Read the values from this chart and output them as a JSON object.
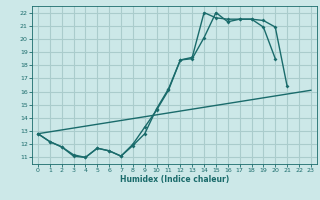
{
  "xlabel": "Humidex (Indice chaleur)",
  "background_color": "#cce8e8",
  "grid_color": "#aacccc",
  "line_color": "#1a6b6b",
  "xlim": [
    -0.5,
    23.5
  ],
  "ylim": [
    10.5,
    22.5
  ],
  "xticks": [
    0,
    1,
    2,
    3,
    4,
    5,
    6,
    7,
    8,
    9,
    10,
    11,
    12,
    13,
    14,
    15,
    16,
    17,
    18,
    19,
    20,
    21,
    22,
    23
  ],
  "yticks": [
    11,
    12,
    13,
    14,
    15,
    16,
    17,
    18,
    19,
    20,
    21,
    22
  ],
  "line1_x": [
    0,
    1,
    2,
    3,
    4,
    5,
    6,
    7,
    8,
    9,
    10,
    11,
    12,
    13,
    14,
    15,
    16,
    17,
    18,
    19,
    20
  ],
  "line1_y": [
    12.8,
    12.2,
    11.8,
    11.1,
    11.0,
    11.7,
    11.5,
    11.1,
    12.0,
    13.3,
    14.6,
    16.1,
    18.4,
    18.5,
    20.1,
    22.0,
    21.3,
    21.5,
    21.5,
    20.9,
    18.5
  ],
  "line2_x": [
    0,
    1,
    2,
    3,
    4,
    5,
    6,
    7,
    8,
    9,
    10,
    11,
    12,
    13,
    14,
    15,
    16,
    17,
    18,
    19,
    20,
    21
  ],
  "line2_y": [
    12.8,
    12.2,
    11.8,
    11.2,
    11.0,
    11.7,
    11.5,
    11.1,
    11.9,
    12.8,
    14.7,
    16.2,
    18.4,
    18.6,
    22.0,
    21.6,
    21.5,
    21.5,
    21.5,
    21.4,
    20.9,
    16.4
  ],
  "line3_x": [
    0,
    23
  ],
  "line3_y": [
    12.8,
    16.1
  ]
}
